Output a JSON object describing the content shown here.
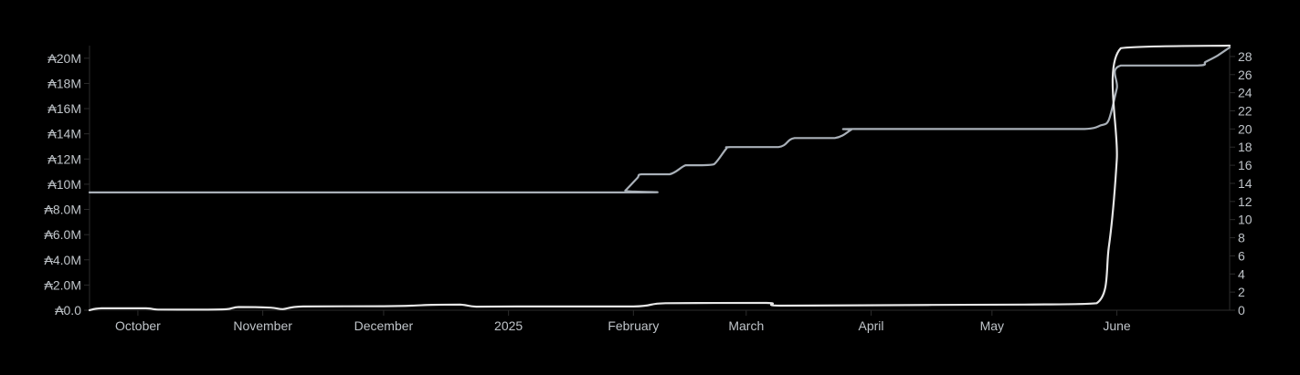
{
  "chart_data": {
    "type": "line",
    "title": "",
    "xlabel": "",
    "ylabel": "",
    "grid": false,
    "x_ticks": [
      {
        "label": "October",
        "t": 6
      },
      {
        "label": "November",
        "t": 37
      },
      {
        "label": "December",
        "t": 67
      },
      {
        "label": "2025",
        "t": 98
      },
      {
        "label": "February",
        "t": 129
      },
      {
        "label": "March",
        "t": 157
      },
      {
        "label": "April",
        "t": 188
      },
      {
        "label": "May",
        "t": 218
      },
      {
        "label": "June",
        "t": 249
      }
    ],
    "x_range": [
      -6,
      277
    ],
    "y_left": {
      "range": [
        0,
        21000000
      ],
      "ticks": [
        0,
        2000000,
        4000000,
        6000000,
        8000000,
        10000000,
        12000000,
        14000000,
        16000000,
        18000000,
        20000000
      ],
      "tick_labels": [
        "₳0.0",
        "₳2.0M",
        "₳4.0M",
        "₳6.0M",
        "₳8.0M",
        "₳10M",
        "₳12M",
        "₳14M",
        "₳16M",
        "₳18M",
        "₳20M"
      ]
    },
    "y_right": {
      "range": [
        0,
        29.2
      ],
      "ticks": [
        0,
        2,
        4,
        6,
        8,
        10,
        12,
        14,
        16,
        18,
        20,
        22,
        24,
        26,
        28
      ],
      "tick_labels": [
        "0",
        "2",
        "4",
        "6",
        "8",
        "10",
        "12",
        "14",
        "16",
        "18",
        "20",
        "22",
        "24",
        "26",
        "28"
      ]
    },
    "series": [
      {
        "axis": "right",
        "color": "#a9b0b8",
        "points": [
          [
            -6,
            13
          ],
          [
            126,
            13
          ],
          [
            127,
            13.2
          ],
          [
            130,
            14.6
          ],
          [
            131,
            15
          ],
          [
            138,
            15
          ],
          [
            142,
            16
          ],
          [
            146,
            16
          ],
          [
            149,
            16.1
          ],
          [
            152,
            17.8
          ],
          [
            153,
            18
          ],
          [
            165,
            18
          ],
          [
            169,
            19
          ],
          [
            179,
            19
          ],
          [
            183,
            19.9
          ],
          [
            184,
            20
          ],
          [
            226,
            20
          ],
          [
            241,
            20
          ],
          [
            245,
            20.4
          ],
          [
            247,
            21
          ],
          [
            249,
            24.5
          ],
          [
            250,
            27
          ],
          [
            269,
            27
          ],
          [
            271,
            27.4
          ],
          [
            274,
            28.1
          ],
          [
            277,
            29
          ]
        ]
      },
      {
        "axis": "left",
        "color": "#e6e6e6",
        "points": [
          [
            -6,
            0
          ],
          [
            -3,
            150000
          ],
          [
            8,
            150000
          ],
          [
            11,
            50000
          ],
          [
            21,
            40000
          ],
          [
            28,
            80000
          ],
          [
            31,
            250000
          ],
          [
            39,
            200000
          ],
          [
            42,
            90000
          ],
          [
            47,
            300000
          ],
          [
            67,
            320000
          ],
          [
            74,
            360000
          ],
          [
            79,
            430000
          ],
          [
            86,
            450000
          ],
          [
            90,
            280000
          ],
          [
            100,
            300000
          ],
          [
            129,
            300000
          ],
          [
            137,
            560000
          ],
          [
            162,
            580000
          ],
          [
            166,
            360000
          ],
          [
            203,
            420000
          ],
          [
            226,
            450000
          ],
          [
            244,
            560000
          ],
          [
            247,
            5000000
          ],
          [
            249,
            12000000
          ],
          [
            250,
            20800000
          ],
          [
            277,
            21000000
          ]
        ]
      }
    ]
  }
}
